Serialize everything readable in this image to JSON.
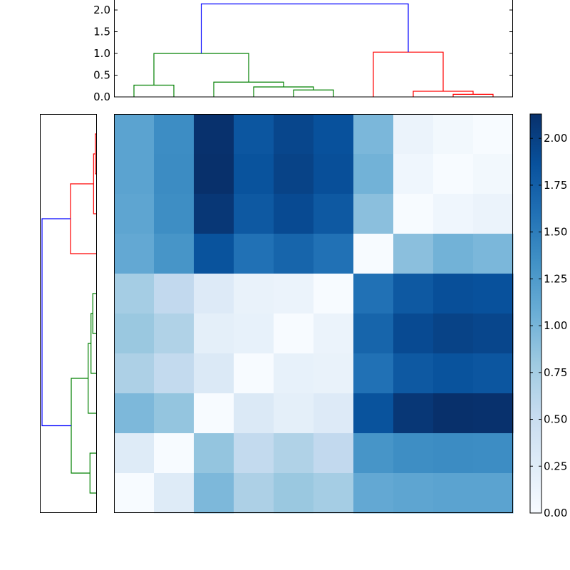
{
  "chart_data": {
    "type": "heatmap",
    "title": "",
    "colormap": "Blues",
    "color_range": [
      0,
      2.13
    ],
    "matrix": [
      [
        1.17,
        1.37,
        2.12,
        1.82,
        1.95,
        1.86,
        0.98,
        0.13,
        0.05,
        0
      ],
      [
        1.17,
        1.38,
        2.13,
        1.85,
        1.98,
        1.88,
        1.03,
        0.08,
        0,
        0.05
      ],
      [
        1.15,
        1.36,
        2.07,
        1.8,
        1.92,
        1.8,
        0.9,
        0,
        0.08,
        0.13
      ],
      [
        1.12,
        1.3,
        1.85,
        1.6,
        1.7,
        1.6,
        0,
        0.9,
        1.03,
        0.98
      ],
      [
        0.75,
        0.56,
        0.28,
        0.15,
        0.13,
        0,
        1.6,
        1.8,
        1.88,
        1.86
      ],
      [
        0.82,
        0.68,
        0.2,
        0.17,
        0,
        0.13,
        1.7,
        1.92,
        1.98,
        1.95
      ],
      [
        0.7,
        0.55,
        0.3,
        0,
        0.17,
        0.15,
        1.6,
        1.8,
        1.85,
        1.82
      ],
      [
        0.97,
        0.85,
        0,
        0.3,
        0.2,
        0.28,
        1.85,
        2.07,
        2.13,
        2.12
      ],
      [
        0.27,
        0,
        0.85,
        0.55,
        0.68,
        0.56,
        1.3,
        1.36,
        1.38,
        1.37
      ],
      [
        0,
        0.27,
        0.97,
        0.7,
        0.82,
        0.75,
        1.12,
        1.15,
        1.17,
        1.17
      ]
    ],
    "colorbar": {
      "ticks": [
        "0.00",
        "0.25",
        "0.50",
        "0.75",
        "1.00",
        "1.25",
        "1.50",
        "1.75",
        "2.00"
      ]
    },
    "dendrogram": {
      "links": [
        {
          "id": 10,
          "a": 8,
          "b": 9,
          "height": 0.06,
          "color": "#ff0000"
        },
        {
          "id": 11,
          "a": 7,
          "b": 10,
          "height": 0.13,
          "color": "#ff0000"
        },
        {
          "id": 12,
          "a": 6,
          "b": 11,
          "height": 1.03,
          "color": "#ff0000"
        },
        {
          "id": 13,
          "a": 4,
          "b": 5,
          "height": 0.16,
          "color": "#008000"
        },
        {
          "id": 14,
          "a": 3,
          "b": 13,
          "height": 0.23,
          "color": "#008000"
        },
        {
          "id": 15,
          "a": 2,
          "b": 14,
          "height": 0.34,
          "color": "#008000"
        },
        {
          "id": 16,
          "a": 0,
          "b": 1,
          "height": 0.27,
          "color": "#008000"
        },
        {
          "id": 17,
          "a": 16,
          "b": 15,
          "height": 1.0,
          "color": "#008000"
        },
        {
          "id": 18,
          "a": 17,
          "b": 12,
          "height": 2.14,
          "color": "#0000ff"
        }
      ],
      "top_ylim": [
        0,
        2.23
      ],
      "top_yticks": [
        "0.0",
        "0.5",
        "1.0",
        "1.5",
        "2.0"
      ]
    }
  }
}
